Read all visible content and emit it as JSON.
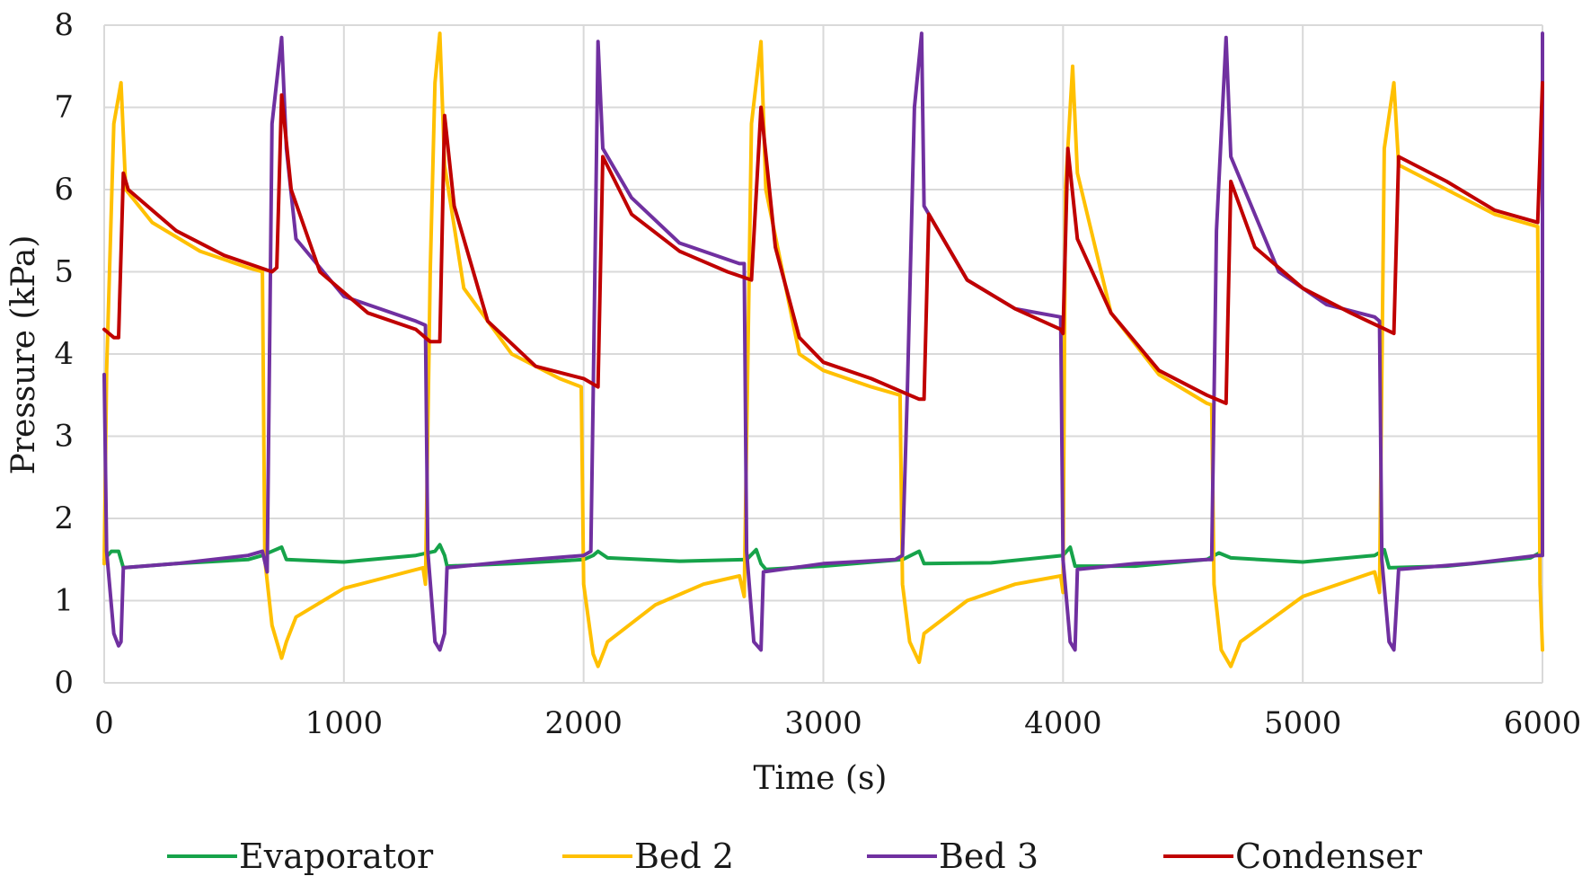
{
  "chart_data": {
    "type": "line",
    "title": "",
    "xlabel": "Time (s)",
    "ylabel": "Pressure (kPa)",
    "xlim": [
      0,
      6000
    ],
    "ylim": [
      0,
      8
    ],
    "xticks": [
      "0",
      "1000",
      "2000",
      "3000",
      "4000",
      "5000",
      "6000"
    ],
    "yticks": [
      "0",
      "1",
      "2",
      "3",
      "4",
      "5",
      "6",
      "7",
      "8"
    ],
    "grid": true,
    "legend_position": "bottom",
    "series": [
      {
        "name": "Evaporator",
        "color": "#16a34a",
        "points": [
          [
            0,
            1.5
          ],
          [
            30,
            1.6
          ],
          [
            60,
            1.6
          ],
          [
            80,
            1.4
          ],
          [
            300,
            1.45
          ],
          [
            600,
            1.5
          ],
          [
            660,
            1.55
          ],
          [
            700,
            1.6
          ],
          [
            740,
            1.65
          ],
          [
            760,
            1.5
          ],
          [
            1000,
            1.47
          ],
          [
            1300,
            1.55
          ],
          [
            1380,
            1.6
          ],
          [
            1400,
            1.68
          ],
          [
            1420,
            1.55
          ],
          [
            1430,
            1.42
          ],
          [
            1700,
            1.45
          ],
          [
            2000,
            1.5
          ],
          [
            2040,
            1.55
          ],
          [
            2060,
            1.6
          ],
          [
            2100,
            1.52
          ],
          [
            2400,
            1.48
          ],
          [
            2680,
            1.5
          ],
          [
            2720,
            1.62
          ],
          [
            2740,
            1.45
          ],
          [
            2760,
            1.38
          ],
          [
            3000,
            1.42
          ],
          [
            3330,
            1.5
          ],
          [
            3400,
            1.6
          ],
          [
            3420,
            1.45
          ],
          [
            3700,
            1.46
          ],
          [
            4000,
            1.55
          ],
          [
            4030,
            1.65
          ],
          [
            4050,
            1.42
          ],
          [
            4300,
            1.42
          ],
          [
            4600,
            1.5
          ],
          [
            4650,
            1.58
          ],
          [
            4700,
            1.52
          ],
          [
            5000,
            1.47
          ],
          [
            5300,
            1.55
          ],
          [
            5340,
            1.62
          ],
          [
            5360,
            1.4
          ],
          [
            5600,
            1.42
          ],
          [
            5950,
            1.52
          ],
          [
            6000,
            1.6
          ]
        ]
      },
      {
        "name": "Bed 2",
        "color": "#ffc000",
        "points": [
          [
            0,
            1.45
          ],
          [
            10,
            3.8
          ],
          [
            40,
            6.8
          ],
          [
            70,
            7.3
          ],
          [
            90,
            6.0
          ],
          [
            200,
            5.6
          ],
          [
            400,
            5.25
          ],
          [
            600,
            5.05
          ],
          [
            660,
            5.0
          ],
          [
            670,
            1.5
          ],
          [
            700,
            0.7
          ],
          [
            740,
            0.3
          ],
          [
            760,
            0.5
          ],
          [
            800,
            0.8
          ],
          [
            1000,
            1.15
          ],
          [
            1200,
            1.3
          ],
          [
            1330,
            1.4
          ],
          [
            1340,
            1.2
          ],
          [
            1360,
            5.0
          ],
          [
            1380,
            7.3
          ],
          [
            1400,
            7.9
          ],
          [
            1420,
            6.3
          ],
          [
            1500,
            4.8
          ],
          [
            1700,
            4.0
          ],
          [
            1900,
            3.7
          ],
          [
            1990,
            3.6
          ],
          [
            2000,
            1.2
          ],
          [
            2040,
            0.35
          ],
          [
            2060,
            0.2
          ],
          [
            2100,
            0.5
          ],
          [
            2300,
            0.95
          ],
          [
            2500,
            1.2
          ],
          [
            2650,
            1.3
          ],
          [
            2670,
            1.05
          ],
          [
            2700,
            6.8
          ],
          [
            2740,
            7.8
          ],
          [
            2760,
            6.0
          ],
          [
            2900,
            4.0
          ],
          [
            3000,
            3.8
          ],
          [
            3200,
            3.6
          ],
          [
            3320,
            3.5
          ],
          [
            3330,
            1.2
          ],
          [
            3360,
            0.5
          ],
          [
            3400,
            0.25
          ],
          [
            3420,
            0.6
          ],
          [
            3600,
            1.0
          ],
          [
            3800,
            1.2
          ],
          [
            3990,
            1.3
          ],
          [
            4000,
            1.1
          ],
          [
            4010,
            6.0
          ],
          [
            4040,
            7.5
          ],
          [
            4060,
            6.2
          ],
          [
            4200,
            4.5
          ],
          [
            4400,
            3.75
          ],
          [
            4600,
            3.4
          ],
          [
            4620,
            3.38
          ],
          [
            4630,
            1.2
          ],
          [
            4660,
            0.4
          ],
          [
            4700,
            0.2
          ],
          [
            4740,
            0.5
          ],
          [
            5000,
            1.05
          ],
          [
            5200,
            1.25
          ],
          [
            5300,
            1.35
          ],
          [
            5320,
            1.1
          ],
          [
            5340,
            6.5
          ],
          [
            5380,
            7.3
          ],
          [
            5400,
            6.3
          ],
          [
            5600,
            6.0
          ],
          [
            5800,
            5.7
          ],
          [
            5980,
            5.55
          ],
          [
            5990,
            1.2
          ],
          [
            6000,
            0.4
          ]
        ]
      },
      {
        "name": "Bed 3",
        "color": "#7030a0",
        "points": [
          [
            0,
            3.75
          ],
          [
            10,
            1.6
          ],
          [
            40,
            0.6
          ],
          [
            60,
            0.45
          ],
          [
            70,
            0.5
          ],
          [
            80,
            1.4
          ],
          [
            300,
            1.45
          ],
          [
            600,
            1.55
          ],
          [
            660,
            1.6
          ],
          [
            680,
            1.35
          ],
          [
            700,
            6.8
          ],
          [
            740,
            7.85
          ],
          [
            760,
            6.5
          ],
          [
            800,
            5.4
          ],
          [
            1000,
            4.7
          ],
          [
            1300,
            4.4
          ],
          [
            1340,
            4.35
          ],
          [
            1350,
            1.6
          ],
          [
            1380,
            0.5
          ],
          [
            1400,
            0.4
          ],
          [
            1420,
            0.6
          ],
          [
            1430,
            1.4
          ],
          [
            1700,
            1.48
          ],
          [
            2000,
            1.55
          ],
          [
            2030,
            1.6
          ],
          [
            2040,
            3.5
          ],
          [
            2060,
            7.8
          ],
          [
            2080,
            6.5
          ],
          [
            2200,
            5.9
          ],
          [
            2400,
            5.35
          ],
          [
            2650,
            5.1
          ],
          [
            2670,
            5.1
          ],
          [
            2680,
            1.6
          ],
          [
            2710,
            0.5
          ],
          [
            2740,
            0.4
          ],
          [
            2750,
            1.35
          ],
          [
            3000,
            1.45
          ],
          [
            3300,
            1.5
          ],
          [
            3330,
            1.55
          ],
          [
            3350,
            3.5
          ],
          [
            3380,
            7.0
          ],
          [
            3410,
            7.9
          ],
          [
            3420,
            5.8
          ],
          [
            3600,
            4.9
          ],
          [
            3800,
            4.55
          ],
          [
            3990,
            4.45
          ],
          [
            4000,
            1.5
          ],
          [
            4030,
            0.5
          ],
          [
            4050,
            0.4
          ],
          [
            4060,
            1.38
          ],
          [
            4300,
            1.45
          ],
          [
            4600,
            1.5
          ],
          [
            4620,
            1.5
          ],
          [
            4640,
            5.5
          ],
          [
            4680,
            7.85
          ],
          [
            4700,
            6.4
          ],
          [
            4900,
            5.0
          ],
          [
            5100,
            4.6
          ],
          [
            5300,
            4.45
          ],
          [
            5320,
            4.4
          ],
          [
            5330,
            1.5
          ],
          [
            5360,
            0.5
          ],
          [
            5380,
            0.4
          ],
          [
            5400,
            1.38
          ],
          [
            5700,
            1.45
          ],
          [
            5980,
            1.55
          ],
          [
            6000,
            1.55
          ],
          [
            6020,
            7.9
          ]
        ]
      },
      {
        "name": "Condenser",
        "color": "#c00000",
        "points": [
          [
            0,
            4.3
          ],
          [
            40,
            4.2
          ],
          [
            60,
            4.2
          ],
          [
            80,
            6.2
          ],
          [
            100,
            6.0
          ],
          [
            300,
            5.5
          ],
          [
            500,
            5.2
          ],
          [
            650,
            5.05
          ],
          [
            700,
            5.0
          ],
          [
            720,
            5.05
          ],
          [
            740,
            7.15
          ],
          [
            780,
            6.0
          ],
          [
            900,
            5.0
          ],
          [
            1100,
            4.5
          ],
          [
            1300,
            4.3
          ],
          [
            1360,
            4.15
          ],
          [
            1400,
            4.15
          ],
          [
            1420,
            6.9
          ],
          [
            1460,
            5.8
          ],
          [
            1600,
            4.4
          ],
          [
            1800,
            3.85
          ],
          [
            2000,
            3.7
          ],
          [
            2060,
            3.6
          ],
          [
            2080,
            6.4
          ],
          [
            2200,
            5.7
          ],
          [
            2400,
            5.25
          ],
          [
            2600,
            5.0
          ],
          [
            2700,
            4.9
          ],
          [
            2740,
            7.0
          ],
          [
            2800,
            5.3
          ],
          [
            2900,
            4.2
          ],
          [
            3000,
            3.9
          ],
          [
            3200,
            3.7
          ],
          [
            3400,
            3.45
          ],
          [
            3420,
            3.45
          ],
          [
            3440,
            5.7
          ],
          [
            3600,
            4.9
          ],
          [
            3800,
            4.55
          ],
          [
            3990,
            4.3
          ],
          [
            4000,
            4.25
          ],
          [
            4020,
            6.5
          ],
          [
            4060,
            5.4
          ],
          [
            4200,
            4.5
          ],
          [
            4400,
            3.8
          ],
          [
            4600,
            3.5
          ],
          [
            4680,
            3.4
          ],
          [
            4700,
            6.1
          ],
          [
            4800,
            5.3
          ],
          [
            5000,
            4.8
          ],
          [
            5200,
            4.5
          ],
          [
            5380,
            4.25
          ],
          [
            5400,
            6.4
          ],
          [
            5600,
            6.1
          ],
          [
            5800,
            5.75
          ],
          [
            5980,
            5.6
          ],
          [
            6000,
            7.3
          ]
        ]
      }
    ]
  }
}
